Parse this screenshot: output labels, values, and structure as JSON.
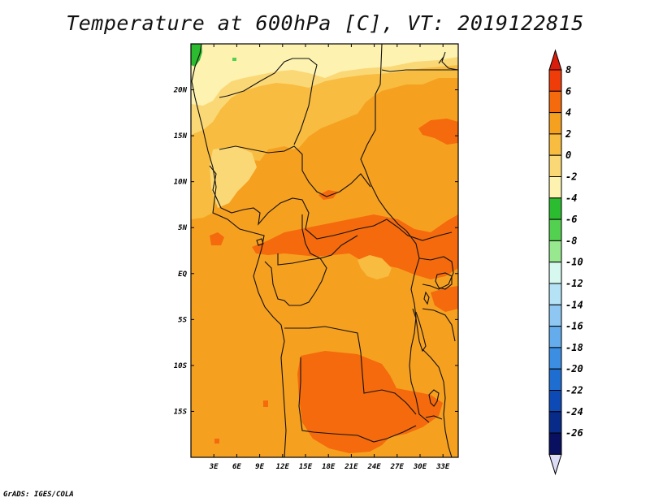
{
  "title": "Temperature at 600hPa [C], VT: 2019122815",
  "credit": "GrADS: IGES/COLA",
  "map": {
    "lon_labels": [
      "3E",
      "6E",
      "9E",
      "12E",
      "15E",
      "18E",
      "21E",
      "24E",
      "27E",
      "30E",
      "33E"
    ],
    "lat_labels": [
      "20N",
      "15N",
      "10N",
      "5N",
      "EQ",
      "5S",
      "10S",
      "15S"
    ],
    "lon_range": [
      0,
      35
    ],
    "lat_range": [
      -20,
      25
    ]
  },
  "colorbar": {
    "labels": [
      "8",
      "6",
      "4",
      "2",
      "0",
      "-2",
      "-4",
      "-6",
      "-8",
      "-10",
      "-12",
      "-14",
      "-16",
      "-18",
      "-20",
      "-22",
      "-24",
      "-26"
    ],
    "colors": [
      "#d91c0c",
      "#f03c08",
      "#f46a0c",
      "#f6a020",
      "#f8bc40",
      "#fbd876",
      "#fdf2b0",
      "#2cbc30",
      "#54d050",
      "#98e890",
      "#d6f8ee",
      "#b6e2f6",
      "#8ec8f2",
      "#64acec",
      "#3c8ee2",
      "#1e6ed2",
      "#0e4ab6",
      "#082a88",
      "#0a1060",
      "#dcdcf6"
    ]
  }
}
